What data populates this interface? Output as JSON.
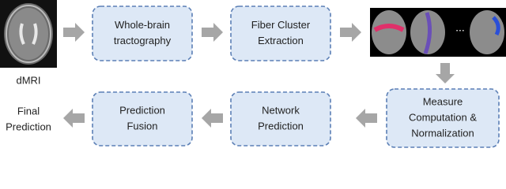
{
  "input_label": "dMRI",
  "nodes": [
    {
      "lines": [
        "Whole-brain",
        "tractography"
      ]
    },
    {
      "lines": [
        "Fiber Cluster",
        "Extraction"
      ]
    },
    {
      "lines": [
        "Measure",
        "Computation &",
        "Normalization"
      ]
    },
    {
      "lines": [
        "Network",
        "Prediction"
      ]
    },
    {
      "lines": [
        "Prediction",
        "Fusion"
      ]
    }
  ],
  "ellipsis": "...",
  "output_lines": [
    "Final",
    "Prediction"
  ]
}
